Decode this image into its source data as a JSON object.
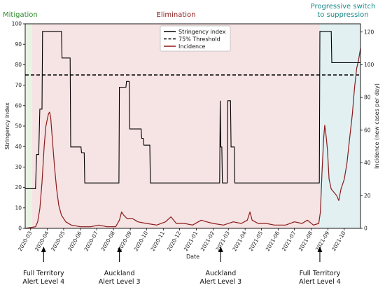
{
  "chart_data": {
    "type": "line",
    "phases": [
      {
        "name": "Mitigation",
        "color": "#2e8b2e"
      },
      {
        "name": "Elimination",
        "color": "#8b1a1a"
      },
      {
        "name": "Progressive switch\nto suppression",
        "color": "#1b8a8a"
      }
    ],
    "xlabel": "Date",
    "ylabel_left": "Stringency index",
    "ylabel_right": "Incidence (new cases per day)",
    "ylim_left": [
      0,
      100
    ],
    "ylim_right": [
      0,
      125
    ],
    "x_range": [
      "2020-02-20",
      "2021-10-31"
    ],
    "x_ticks": [
      "2020-03",
      "2020-04",
      "2020-05",
      "2020-06",
      "2020-07",
      "2020-08",
      "2020-09",
      "2020-10",
      "2020-11",
      "2020-12",
      "2021-01",
      "2021-02",
      "2021-03",
      "2021-04",
      "2021-05",
      "2021-06",
      "2021-07",
      "2021-08",
      "2021-09",
      "2021-10"
    ],
    "y_ticks_left": [
      0,
      10,
      20,
      30,
      40,
      50,
      60,
      70,
      80,
      90,
      100
    ],
    "y_ticks_right": [
      0,
      20,
      40,
      60,
      80,
      100,
      120
    ],
    "phase_boundaries": [
      "2020-03-04",
      "2021-08-17"
    ],
    "legend": {
      "position": "top-center",
      "entries": [
        "Stringency index",
        "75% Threshold",
        "Incidence"
      ]
    },
    "series": [
      {
        "name": "Stringency index",
        "color": "#000000",
        "style": "step",
        "axis": "left",
        "points": [
          [
            "2020-02-20",
            19.4
          ],
          [
            "2020-03-10",
            19.4
          ],
          [
            "2020-03-12",
            36.1
          ],
          [
            "2020-03-16",
            36.1
          ],
          [
            "2020-03-18",
            58.3
          ],
          [
            "2020-03-22",
            58.3
          ],
          [
            "2020-03-23",
            96.3
          ],
          [
            "2020-04-27",
            96.3
          ],
          [
            "2020-04-28",
            83.3
          ],
          [
            "2020-05-13",
            83.3
          ],
          [
            "2020-05-14",
            39.8
          ],
          [
            "2020-06-02",
            39.8
          ],
          [
            "2020-06-03",
            37.0
          ],
          [
            "2020-06-08",
            37.0
          ],
          [
            "2020-06-09",
            22.2
          ],
          [
            "2020-08-11",
            22.2
          ],
          [
            "2020-08-12",
            69.0
          ],
          [
            "2020-08-24",
            69.0
          ],
          [
            "2020-08-25",
            71.8
          ],
          [
            "2020-08-30",
            71.8
          ],
          [
            "2020-08-31",
            48.6
          ],
          [
            "2020-09-21",
            48.6
          ],
          [
            "2020-09-22",
            44.0
          ],
          [
            "2020-09-25",
            44.0
          ],
          [
            "2020-09-26",
            40.7
          ],
          [
            "2020-10-07",
            40.7
          ],
          [
            "2020-10-08",
            22.2
          ],
          [
            "2021-02-13",
            22.2
          ],
          [
            "2021-02-14",
            62.4
          ],
          [
            "2021-02-15",
            39.8
          ],
          [
            "2021-02-17",
            39.8
          ],
          [
            "2021-02-18",
            22.2
          ],
          [
            "2021-02-27",
            22.2
          ],
          [
            "2021-02-28",
            62.4
          ],
          [
            "2021-03-05",
            62.4
          ],
          [
            "2021-03-06",
            39.8
          ],
          [
            "2021-03-12",
            39.8
          ],
          [
            "2021-03-13",
            22.2
          ],
          [
            "2021-08-16",
            22.2
          ],
          [
            "2021-08-17",
            96.3
          ],
          [
            "2021-09-07",
            96.3
          ],
          [
            "2021-09-08",
            81.0
          ],
          [
            "2021-10-31",
            81.0
          ]
        ]
      },
      {
        "name": "75% Threshold",
        "color": "#000000",
        "style": "dashed",
        "axis": "left",
        "value": 75
      },
      {
        "name": "Incidence",
        "color": "#8b1a1a",
        "style": "line",
        "axis": "right",
        "points": [
          [
            "2020-02-20",
            0
          ],
          [
            "2020-03-10",
            1
          ],
          [
            "2020-03-14",
            4
          ],
          [
            "2020-03-18",
            12
          ],
          [
            "2020-03-22",
            28
          ],
          [
            "2020-03-26",
            50
          ],
          [
            "2020-03-29",
            62
          ],
          [
            "2020-04-01",
            67
          ],
          [
            "2020-04-03",
            70
          ],
          [
            "2020-04-05",
            71
          ],
          [
            "2020-04-07",
            68
          ],
          [
            "2020-04-10",
            55
          ],
          [
            "2020-04-14",
            38
          ],
          [
            "2020-04-18",
            24
          ],
          [
            "2020-04-22",
            14
          ],
          [
            "2020-04-27",
            8
          ],
          [
            "2020-05-05",
            4
          ],
          [
            "2020-05-15",
            2
          ],
          [
            "2020-06-01",
            1
          ],
          [
            "2020-06-20",
            1
          ],
          [
            "2020-07-05",
            2
          ],
          [
            "2020-07-20",
            1
          ],
          [
            "2020-08-05",
            1
          ],
          [
            "2020-08-12",
            5
          ],
          [
            "2020-08-16",
            10
          ],
          [
            "2020-08-20",
            8
          ],
          [
            "2020-08-26",
            6
          ],
          [
            "2020-09-05",
            6
          ],
          [
            "2020-09-15",
            4
          ],
          [
            "2020-10-01",
            3
          ],
          [
            "2020-10-20",
            2
          ],
          [
            "2020-11-05",
            4
          ],
          [
            "2020-11-15",
            7
          ],
          [
            "2020-11-25",
            3
          ],
          [
            "2020-12-10",
            3
          ],
          [
            "2020-12-25",
            2
          ],
          [
            "2021-01-10",
            5
          ],
          [
            "2021-01-20",
            4
          ],
          [
            "2021-02-01",
            3
          ],
          [
            "2021-02-20",
            2
          ],
          [
            "2021-03-10",
            4
          ],
          [
            "2021-03-25",
            3
          ],
          [
            "2021-04-05",
            5
          ],
          [
            "2021-04-10",
            10
          ],
          [
            "2021-04-14",
            5
          ],
          [
            "2021-04-25",
            3
          ],
          [
            "2021-05-10",
            3
          ],
          [
            "2021-05-25",
            2
          ],
          [
            "2021-06-15",
            2
          ],
          [
            "2021-07-01",
            4
          ],
          [
            "2021-07-15",
            3
          ],
          [
            "2021-07-25",
            5
          ],
          [
            "2021-08-05",
            2
          ],
          [
            "2021-08-15",
            3
          ],
          [
            "2021-08-18",
            10
          ],
          [
            "2021-08-21",
            35
          ],
          [
            "2021-08-24",
            55
          ],
          [
            "2021-08-26",
            63
          ],
          [
            "2021-08-28",
            58
          ],
          [
            "2021-08-31",
            48
          ],
          [
            "2021-09-03",
            30
          ],
          [
            "2021-09-07",
            24
          ],
          [
            "2021-09-12",
            22
          ],
          [
            "2021-09-17",
            20
          ],
          [
            "2021-09-21",
            17
          ],
          [
            "2021-09-25",
            24
          ],
          [
            "2021-10-01",
            30
          ],
          [
            "2021-10-06",
            40
          ],
          [
            "2021-10-11",
            55
          ],
          [
            "2021-10-16",
            70
          ],
          [
            "2021-10-20",
            86
          ],
          [
            "2021-10-24",
            98
          ],
          [
            "2021-10-27",
            102
          ],
          [
            "2021-10-31",
            110
          ]
        ]
      }
    ],
    "annotations": [
      {
        "text": "Full Territory\nAlert Level 4",
        "date": "2020-03-25"
      },
      {
        "text": "Auckland\nAlert Level 3",
        "date": "2020-08-12"
      },
      {
        "text": "Auckland\nAlert Level 3",
        "date": "2021-02-15"
      },
      {
        "text": "Full Territory\nAlert Level 4",
        "date": "2021-08-17"
      }
    ]
  }
}
